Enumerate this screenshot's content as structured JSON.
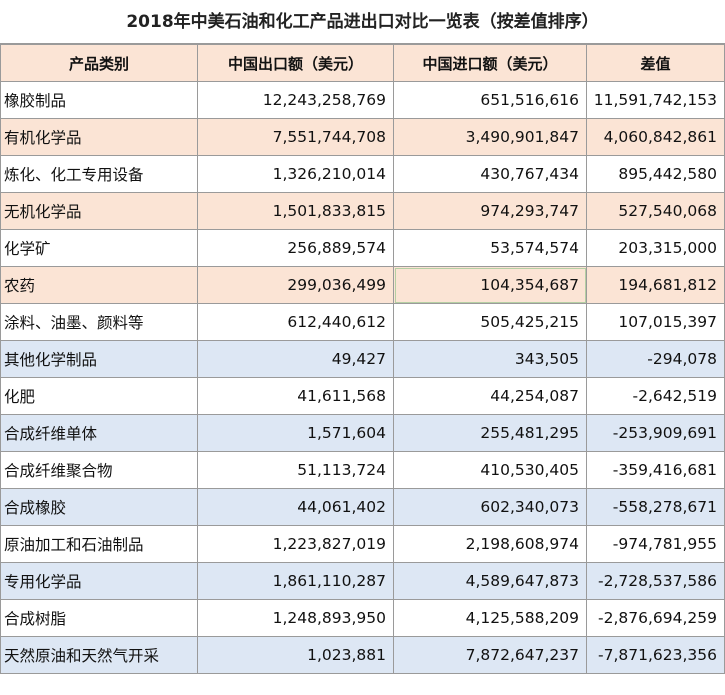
{
  "title": "2018年中美石油和化工产品进出口对比一览表（按差值排序）",
  "headers": [
    "产品类别",
    "中国出口额（美元）",
    "中国进口额（美元）",
    "差值"
  ],
  "colors": {
    "peach": "#fbe4d5",
    "blue": "#dde7f4",
    "white": "#ffffff",
    "border": "#9a9a9a"
  },
  "rows": [
    {
      "category": "橡胶制品",
      "export": "12,243,258,769",
      "import": "651,516,616",
      "diff": "11,591,742,153",
      "shade": "white"
    },
    {
      "category": "有机化学品",
      "export": "7,551,744,708",
      "import": "3,490,901,847",
      "diff": "4,060,842,861",
      "shade": "peach"
    },
    {
      "category": "炼化、化工专用设备",
      "export": "1,326,210,014",
      "import": "430,767,434",
      "diff": "895,442,580",
      "shade": "white"
    },
    {
      "category": "无机化学品",
      "export": "1,501,833,815",
      "import": "974,293,747",
      "diff": "527,540,068",
      "shade": "peach"
    },
    {
      "category": "化学矿",
      "export": "256,889,574",
      "import": "53,574,574",
      "diff": "203,315,000",
      "shade": "white"
    },
    {
      "category": "农药",
      "export": "299,036,499",
      "import": "104,354,687",
      "diff": "194,681,812",
      "shade": "peach"
    },
    {
      "category": "涂料、油墨、颜料等",
      "export": "612,440,612",
      "import": "505,425,215",
      "diff": "107,015,397",
      "shade": "white"
    },
    {
      "category": "其他化学制品",
      "export": "49,427",
      "import": "343,505",
      "diff": "-294,078",
      "shade": "blue"
    },
    {
      "category": "化肥",
      "export": "41,611,568",
      "import": "44,254,087",
      "diff": "-2,642,519",
      "shade": "white"
    },
    {
      "category": "合成纤维单体",
      "export": "1,571,604",
      "import": "255,481,295",
      "diff": "-253,909,691",
      "shade": "blue"
    },
    {
      "category": "合成纤维聚合物",
      "export": "51,113,724",
      "import": "410,530,405",
      "diff": "-359,416,681",
      "shade": "white"
    },
    {
      "category": "合成橡胶",
      "export": "44,061,402",
      "import": "602,340,073",
      "diff": "-558,278,671",
      "shade": "blue"
    },
    {
      "category": "原油加工和石油制品",
      "export": "1,223,827,019",
      "import": "2,198,608,974",
      "diff": "-974,781,955",
      "shade": "white"
    },
    {
      "category": "专用化学品",
      "export": "1,861,110,287",
      "import": "4,589,647,873",
      "diff": "-2,728,537,586",
      "shade": "blue"
    },
    {
      "category": "合成树脂",
      "export": "1,248,893,950",
      "import": "4,125,588,209",
      "diff": "-2,876,694,259",
      "shade": "white"
    },
    {
      "category": "天然原油和天然气开采",
      "export": "1,023,881",
      "import": "7,872,647,237",
      "diff": "-7,871,623,356",
      "shade": "blue"
    }
  ]
}
